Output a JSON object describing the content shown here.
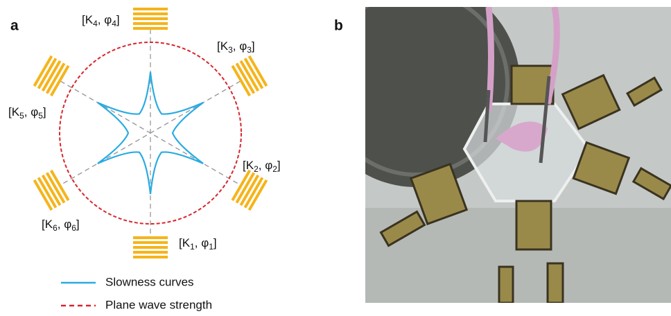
{
  "panel_a": {
    "label": "a",
    "transducers": [
      {
        "parts": [
          "[K",
          "1",
          ", φ",
          "1",
          "]"
        ]
      },
      {
        "parts": [
          "[K",
          "2",
          ", φ",
          "2",
          "]"
        ]
      },
      {
        "parts": [
          "[K",
          "3",
          ", φ",
          "3",
          "]"
        ]
      },
      {
        "parts": [
          "[K",
          "4",
          ", φ",
          "4",
          "]"
        ]
      },
      {
        "parts": [
          "[K",
          "5",
          ", φ",
          "5",
          "]"
        ]
      },
      {
        "parts": [
          "[K",
          "6",
          ", φ",
          "6",
          "]"
        ]
      }
    ],
    "legend": [
      {
        "label": "Slowness curves"
      },
      {
        "label": "Plane wave strength"
      }
    ]
  },
  "panel_b": {
    "label": "b"
  }
}
